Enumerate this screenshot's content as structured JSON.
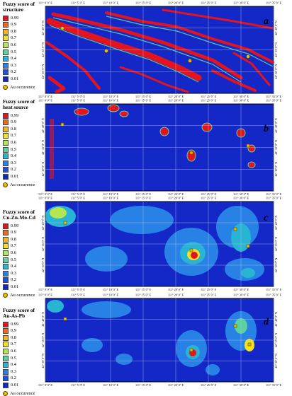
{
  "au_label": "Au occurence",
  "longitude_ticks": [
    "111° 0' 0\" E",
    "111° 5' 0\" E",
    "111° 10' 0\" E",
    "111° 15' 0\" E",
    "111° 20' 0\" E",
    "111° 25' 0\" E",
    "111° 30' 0\" E",
    "111° 35' 0\" E"
  ],
  "latitude_ticks": [
    "42° 40' 0\" N",
    "42° 35' 0\" N",
    "42° 30' 0\" N"
  ],
  "panels": [
    {
      "letter": "a",
      "title_line1": "Fuzzy score of",
      "title_line2": "structure",
      "legend": [
        {
          "label": "0.99",
          "color": "#e3141e"
        },
        {
          "label": "0.9",
          "color": "#ef6a1e"
        },
        {
          "label": "0.8",
          "color": "#f5b41e"
        },
        {
          "label": "0.7",
          "color": "#f5e11e"
        },
        {
          "label": "0.6",
          "color": "#b4e650"
        },
        {
          "label": "0.5",
          "color": "#5ad2a0"
        },
        {
          "label": "0.4",
          "color": "#28b4d2"
        },
        {
          "label": "0.3",
          "color": "#2882e6"
        },
        {
          "label": "0.2",
          "color": "#1e50e6"
        },
        {
          "label": "0.01",
          "color": "#1428c8"
        }
      ]
    },
    {
      "letter": "b",
      "title_line1": "Fuzzy score of",
      "title_line2": "heat source",
      "legend": [
        {
          "label": "0.99",
          "color": "#e3141e"
        },
        {
          "label": "0.9",
          "color": "#ef6a1e"
        },
        {
          "label": "0.8",
          "color": "#f5b41e"
        },
        {
          "label": "0.7",
          "color": "#f5e11e"
        },
        {
          "label": "0.6",
          "color": "#b4e650"
        },
        {
          "label": "0.5",
          "color": "#5ad2a0"
        },
        {
          "label": "0.4",
          "color": "#28b4d2"
        },
        {
          "label": "0.3",
          "color": "#2882e6"
        },
        {
          "label": "0.2",
          "color": "#1e50e6"
        },
        {
          "label": "0.01",
          "color": "#1428c8"
        }
      ]
    },
    {
      "letter": "c",
      "title_line1": "Fuzzy score of",
      "title_line2": "Cu-Zn-Mo-Cd",
      "legend": [
        {
          "label": "0.99",
          "color": "#e3141e"
        },
        {
          "label": "0.9",
          "color": "#ef6a1e"
        },
        {
          "label": "0.8",
          "color": "#f5b41e"
        },
        {
          "label": "0.7",
          "color": "#f5e11e"
        },
        {
          "label": "0.6",
          "color": "#b4e650"
        },
        {
          "label": "0.5",
          "color": "#5ad2a0"
        },
        {
          "label": "0.4",
          "color": "#28b4d2"
        },
        {
          "label": "0.3",
          "color": "#2882e6"
        },
        {
          "label": "0.2",
          "color": "#1e50e6"
        },
        {
          "label": "0.01",
          "color": "#1428c8"
        }
      ]
    },
    {
      "letter": "d",
      "title_line1": "Fuzzy score of",
      "title_line2": "Au-As-Pb",
      "legend": [
        {
          "label": "0.99",
          "color": "#e3141e"
        },
        {
          "label": "0.9",
          "color": "#ef6a1e"
        },
        {
          "label": "0.8",
          "color": "#f5b41e"
        },
        {
          "label": "0.7",
          "color": "#f5e11e"
        },
        {
          "label": "0.6",
          "color": "#b4e650"
        },
        {
          "label": "0.5",
          "color": "#5ad2a0"
        },
        {
          "label": "0.4",
          "color": "#28b4d2"
        },
        {
          "label": "0.3",
          "color": "#2882e6"
        },
        {
          "label": "0.2",
          "color": "#1e50e6"
        },
        {
          "label": "0.01",
          "color": "#1428c8"
        }
      ]
    }
  ],
  "colors": {
    "background": "#1428c8",
    "frame": "#000000",
    "grid": "#b9c3e6",
    "au_marker": "#e6c200"
  }
}
